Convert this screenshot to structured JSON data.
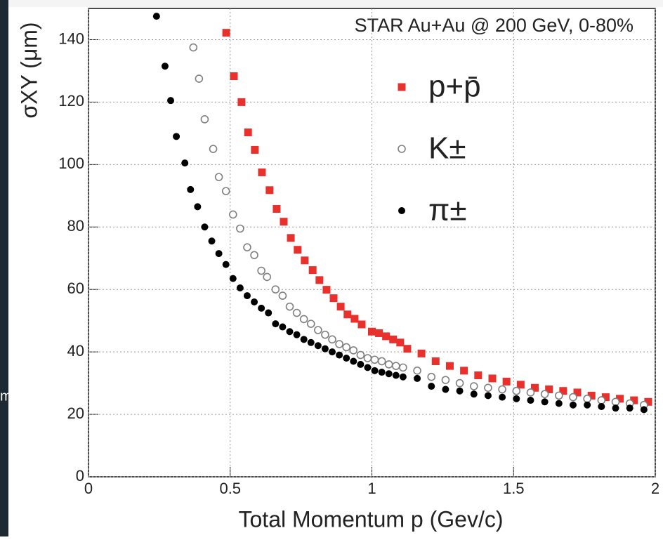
{
  "chart_data": {
    "type": "scatter",
    "title": "STAR Au+Au @ 200 GeV, 0-80%",
    "x_label": "Total Momentum p (Gev/c)",
    "y_label": "σXY (μm)",
    "xlim": [
      0,
      2
    ],
    "xticks": [
      0,
      0.5,
      1,
      1.5,
      2
    ],
    "ylim": [
      0,
      150
    ],
    "yticks": [
      0,
      20,
      40,
      60,
      80,
      100,
      120,
      140
    ],
    "grid": true,
    "series": [
      {
        "name": "p+p̄",
        "color": "#e8312c",
        "marker": "square",
        "x": [
          0.486,
          0.513,
          0.54,
          0.563,
          0.587,
          0.612,
          0.639,
          0.664,
          0.689,
          0.714,
          0.738,
          0.763,
          0.791,
          0.815,
          0.84,
          0.865,
          0.89,
          0.914,
          0.939,
          0.964,
          1.0,
          1.025,
          1.05,
          1.075,
          1.1,
          1.125,
          1.175,
          1.225,
          1.275,
          1.325,
          1.375,
          1.425,
          1.475,
          1.525,
          1.575,
          1.625,
          1.675,
          1.725,
          1.775,
          1.825,
          1.875,
          1.925,
          1.975
        ],
        "values": [
          142.2,
          128.3,
          120,
          110.3,
          104.7,
          97.5,
          91.8,
          85.8,
          81.7,
          76.5,
          72.7,
          69.3,
          66.2,
          63,
          59.9,
          57.2,
          54.5,
          52,
          50.6,
          48.8,
          46.5,
          46,
          45,
          44,
          43,
          41,
          39.5,
          37,
          35.5,
          34,
          32.5,
          31.5,
          30.5,
          29.5,
          28.5,
          28,
          27.5,
          27,
          26,
          25.5,
          25,
          24.5,
          24
        ]
      },
      {
        "name": "K±",
        "color": "#808080",
        "marker": "open-circle",
        "x": [
          0.37,
          0.39,
          0.41,
          0.44,
          0.46,
          0.485,
          0.51,
          0.535,
          0.56,
          0.585,
          0.61,
          0.63,
          0.66,
          0.685,
          0.71,
          0.735,
          0.76,
          0.785,
          0.81,
          0.835,
          0.86,
          0.885,
          0.91,
          0.935,
          0.96,
          0.985,
          1.01,
          1.035,
          1.06,
          1.085,
          1.11,
          1.16,
          1.21,
          1.26,
          1.31,
          1.36,
          1.41,
          1.46,
          1.51,
          1.56,
          1.61,
          1.66,
          1.71,
          1.76,
          1.81,
          1.86,
          1.91,
          1.96
        ],
        "values": [
          137.5,
          127.5,
          114.5,
          105,
          96,
          91.5,
          84,
          79.5,
          73.5,
          71,
          66,
          64,
          60,
          58,
          54.5,
          52.5,
          50.5,
          49,
          47,
          45.5,
          44,
          42.5,
          41.5,
          40.5,
          39,
          38,
          37.5,
          37,
          36,
          35.5,
          35,
          34,
          32,
          31,
          30,
          29,
          28.5,
          28,
          27.5,
          27,
          26.5,
          26,
          25.5,
          25,
          24.5,
          24,
          23.5,
          23
        ]
      },
      {
        "name": "π±",
        "color": "#000000",
        "marker": "circle",
        "x": [
          0.24,
          0.27,
          0.29,
          0.31,
          0.34,
          0.36,
          0.385,
          0.41,
          0.435,
          0.46,
          0.485,
          0.51,
          0.535,
          0.56,
          0.585,
          0.61,
          0.635,
          0.66,
          0.685,
          0.71,
          0.735,
          0.76,
          0.785,
          0.81,
          0.835,
          0.86,
          0.885,
          0.91,
          0.935,
          0.96,
          0.985,
          1.01,
          1.035,
          1.06,
          1.085,
          1.11,
          1.16,
          1.21,
          1.26,
          1.31,
          1.36,
          1.41,
          1.46,
          1.51,
          1.56,
          1.61,
          1.66,
          1.71,
          1.76,
          1.81,
          1.86,
          1.91,
          1.96
        ],
        "values": [
          147.5,
          131.5,
          120.5,
          109,
          100.5,
          92,
          86.5,
          80,
          75.5,
          71.5,
          68,
          63.5,
          60.5,
          58,
          56,
          54,
          52.5,
          49,
          48,
          46.5,
          45.5,
          44,
          43,
          42,
          41,
          40,
          39,
          38,
          37,
          36,
          35,
          34,
          33.5,
          33,
          32.5,
          32,
          31.5,
          29,
          28,
          27.5,
          26.5,
          26,
          25.5,
          25,
          24.5,
          24,
          23.5,
          23,
          23,
          22.5,
          22,
          22,
          21.5
        ]
      }
    ]
  },
  "background_fragment": "m"
}
